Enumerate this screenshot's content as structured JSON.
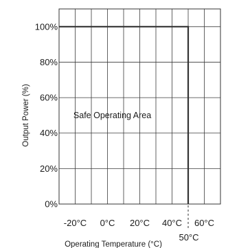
{
  "chart_data": {
    "type": "line",
    "title": "",
    "xlabel": "Operating Temperature (°C)",
    "ylabel": "Output Power (%)",
    "xlim": [
      -30,
      70
    ],
    "ylim": [
      0,
      110
    ],
    "x_ticks": [
      {
        "value": -20,
        "label": "-20°C"
      },
      {
        "value": 0,
        "label": "0°C"
      },
      {
        "value": 20,
        "label": "20°C"
      },
      {
        "value": 40,
        "label": "40°C"
      },
      {
        "value": 60,
        "label": "60°C"
      }
    ],
    "y_ticks": [
      {
        "value": 0,
        "label": "0%"
      },
      {
        "value": 20,
        "label": "20%"
      },
      {
        "value": 40,
        "label": "40%"
      },
      {
        "value": 60,
        "label": "60%"
      },
      {
        "value": 80,
        "label": "80%"
      },
      {
        "value": 100,
        "label": "100%"
      }
    ],
    "grid": true,
    "series": [
      {
        "x": [
          -30,
          50,
          50
        ],
        "y": [
          100,
          100,
          0
        ],
        "color": "#333333"
      }
    ],
    "annotations": [
      {
        "text": "Safe Operating Area",
        "x": 3,
        "y": 50
      },
      {
        "text": "50°C",
        "x": 50,
        "y": -9,
        "marker": "dashed-vertical"
      }
    ]
  }
}
